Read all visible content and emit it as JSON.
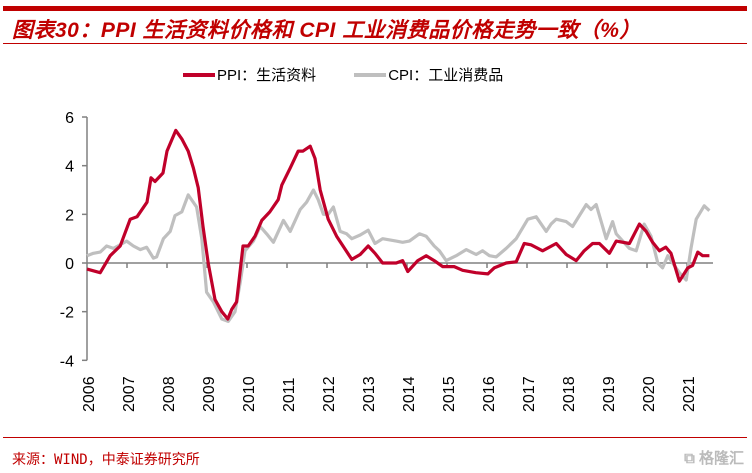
{
  "title": "图表30：PPI 生活资料价格和 CPI 工业消费品价格走势一致（%）",
  "source": "来源：WIND，中泰证券研究所",
  "watermark": "格隆汇",
  "chart_data": {
    "type": "line",
    "title": "图表30：PPI 生活资料价格和 CPI 工业消费品价格走势一致（%）",
    "xlabel": "",
    "ylabel": "",
    "ylim": [
      -4,
      6
    ],
    "yticks": [
      "6",
      "4",
      "2",
      "0",
      "-2",
      "-4"
    ],
    "ytick_values": [
      6,
      4,
      2,
      0,
      -2,
      -4
    ],
    "xlim": [
      2006,
      2022
    ],
    "xticks": [
      "2006",
      "2007",
      "2008",
      "2009",
      "2010",
      "2011",
      "2012",
      "2013",
      "2014",
      "2015",
      "2016",
      "2017",
      "2018",
      "2019",
      "2020",
      "2021"
    ],
    "legend_position": "top-center",
    "grid": false,
    "series": [
      {
        "name": "PPI：生活资料",
        "color": "#c0002a",
        "x": [
          2006.0,
          2006.33,
          2006.58,
          2006.83,
          2007.08,
          2007.25,
          2007.5,
          2007.6,
          2007.7,
          2007.9,
          2008.0,
          2008.22,
          2008.37,
          2008.53,
          2008.66,
          2008.78,
          2008.9,
          2009.03,
          2009.2,
          2009.37,
          2009.52,
          2009.62,
          2009.74,
          2009.9,
          2010.03,
          2010.2,
          2010.37,
          2010.57,
          2010.78,
          2010.87,
          2011.08,
          2011.28,
          2011.4,
          2011.58,
          2011.7,
          2011.83,
          2012.03,
          2012.24,
          2012.4,
          2012.62,
          2012.83,
          2013.03,
          2013.2,
          2013.39,
          2013.73,
          2013.89,
          2014.02,
          2014.27,
          2014.48,
          2014.68,
          2014.89,
          2015.18,
          2015.39,
          2015.72,
          2016.02,
          2016.18,
          2016.48,
          2016.73,
          2016.93,
          2017.1,
          2017.39,
          2017.73,
          2017.98,
          2018.23,
          2018.43,
          2018.64,
          2018.81,
          2019.06,
          2019.23,
          2019.56,
          2019.81,
          2019.98,
          2020.14,
          2020.31,
          2020.47,
          2020.6,
          2020.81,
          2021.02,
          2021.14,
          2021.27,
          2021.39,
          2021.56
        ],
        "values": [
          -0.25,
          -0.4,
          0.3,
          0.7,
          1.8,
          1.9,
          2.5,
          3.5,
          3.35,
          3.7,
          4.6,
          5.45,
          5.1,
          4.6,
          3.9,
          3.1,
          1.5,
          0.0,
          -1.5,
          -2.0,
          -2.3,
          -1.9,
          -1.6,
          0.7,
          0.7,
          1.1,
          1.75,
          2.1,
          2.6,
          3.2,
          3.9,
          4.6,
          4.6,
          4.8,
          4.3,
          3.0,
          1.8,
          1.1,
          0.7,
          0.15,
          0.35,
          0.7,
          0.4,
          0.0,
          0.0,
          0.1,
          -0.35,
          0.1,
          0.3,
          0.1,
          -0.15,
          -0.15,
          -0.3,
          -0.4,
          -0.45,
          -0.2,
          0.0,
          0.05,
          0.8,
          0.75,
          0.5,
          0.8,
          0.35,
          0.1,
          0.5,
          0.8,
          0.8,
          0.4,
          0.9,
          0.8,
          1.6,
          1.3,
          0.85,
          0.5,
          0.65,
          0.4,
          -0.75,
          -0.2,
          -0.1,
          0.45,
          0.3,
          0.3
        ]
      },
      {
        "name": "CPI：工业消费品",
        "color": "#bfbfbf",
        "x": [
          2006.0,
          2006.16,
          2006.33,
          2006.49,
          2006.66,
          2006.83,
          2006.99,
          2007.16,
          2007.33,
          2007.49,
          2007.66,
          2007.74,
          2007.91,
          2008.08,
          2008.2,
          2008.37,
          2008.53,
          2008.74,
          2008.87,
          2008.99,
          2009.16,
          2009.37,
          2009.53,
          2009.7,
          2009.83,
          2009.95,
          2010.16,
          2010.33,
          2010.49,
          2010.66,
          2010.91,
          2011.08,
          2011.33,
          2011.49,
          2011.66,
          2011.78,
          2011.91,
          2012.03,
          2012.16,
          2012.33,
          2012.49,
          2012.62,
          2012.83,
          2013.03,
          2013.2,
          2013.39,
          2013.73,
          2013.89,
          2014.06,
          2014.31,
          2014.48,
          2014.68,
          2014.81,
          2014.98,
          2015.23,
          2015.48,
          2015.73,
          2015.89,
          2016.06,
          2016.23,
          2016.48,
          2016.73,
          2017.02,
          2017.23,
          2017.48,
          2017.6,
          2017.73,
          2017.98,
          2018.14,
          2018.48,
          2018.6,
          2018.73,
          2018.98,
          2019.14,
          2019.23,
          2019.56,
          2019.73,
          2019.93,
          2020.1,
          2020.27,
          2020.39,
          2020.52,
          2020.64,
          2020.81,
          2020.98,
          2021.1,
          2021.23,
          2021.43,
          2021.56
        ],
        "values": [
          0.3,
          0.4,
          0.45,
          0.7,
          0.6,
          0.75,
          0.9,
          0.7,
          0.55,
          0.65,
          0.2,
          0.25,
          1.0,
          1.3,
          1.95,
          2.1,
          2.8,
          2.3,
          1.0,
          -1.2,
          -1.6,
          -2.3,
          -2.4,
          -2.0,
          -0.8,
          0.5,
          0.9,
          1.5,
          1.2,
          0.85,
          1.75,
          1.3,
          2.2,
          2.5,
          3.0,
          2.6,
          2.0,
          2.0,
          2.3,
          1.3,
          1.2,
          1.0,
          1.15,
          1.35,
          0.8,
          1.0,
          0.9,
          0.85,
          0.9,
          1.2,
          1.1,
          0.7,
          0.5,
          0.1,
          0.3,
          0.55,
          0.35,
          0.5,
          0.3,
          0.25,
          0.6,
          1.0,
          1.8,
          1.9,
          1.3,
          1.6,
          1.8,
          1.7,
          1.5,
          2.4,
          2.2,
          2.4,
          1.0,
          1.7,
          1.2,
          0.6,
          0.5,
          1.6,
          1.1,
          0.0,
          -0.2,
          0.3,
          0.0,
          -0.4,
          -0.7,
          0.6,
          1.8,
          2.35,
          2.15
        ]
      }
    ]
  }
}
